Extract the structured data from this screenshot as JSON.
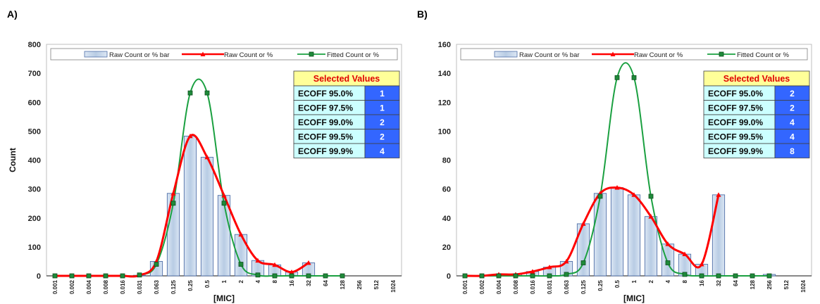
{
  "chart_data": [
    {
      "panel_label": "A)",
      "type": "bar",
      "ylabel": "Count",
      "xlabel": "[MIC]",
      "ylim": [
        0,
        800
      ],
      "yticks": [
        0,
        100,
        200,
        300,
        400,
        500,
        600,
        700,
        800
      ],
      "categories": [
        "0.001",
        "0.002",
        "0.004",
        "0.008",
        "0.016",
        "0.031",
        "0.063",
        "0.125",
        "0.25",
        "0.5",
        "1",
        "2",
        "4",
        "8",
        "16",
        "32",
        "64",
        "128",
        "256",
        "512",
        "1024"
      ],
      "legend": [
        "Raw Count or % bar",
        "Raw Count or %",
        "Fitted Count or %"
      ],
      "series": [
        {
          "name": "Raw Count or % bar",
          "kind": "bar",
          "color": "#b8cce4",
          "values": [
            0,
            0,
            0,
            0,
            0,
            2,
            50,
            285,
            483,
            410,
            278,
            143,
            53,
            38,
            13,
            45,
            null,
            null,
            null,
            null,
            null
          ]
        },
        {
          "name": "Raw Count or %",
          "kind": "line",
          "color": "#ff0000",
          "values": [
            0,
            0,
            0,
            0,
            0,
            2,
            50,
            285,
            483,
            410,
            278,
            143,
            53,
            38,
            13,
            45,
            null,
            null,
            null,
            null,
            null
          ]
        },
        {
          "name": "Fitted Count or %",
          "kind": "line",
          "color": "#1aa040",
          "values": [
            0,
            0,
            0,
            0,
            0,
            3,
            40,
            251,
            632,
            632,
            251,
            40,
            3,
            0,
            0,
            0,
            0,
            0,
            null,
            null,
            null
          ]
        }
      ],
      "selected_values": {
        "title": "Selected Values",
        "rows": [
          {
            "label": "ECOFF 95.0%",
            "value": "1"
          },
          {
            "label": "ECOFF 97.5%",
            "value": "1"
          },
          {
            "label": "ECOFF 99.0%",
            "value": "2"
          },
          {
            "label": "ECOFF 99.5%",
            "value": "2"
          },
          {
            "label": "ECOFF 99.9%",
            "value": "4"
          }
        ]
      },
      "grid": false,
      "legend_position": "top"
    },
    {
      "panel_label": "B)",
      "type": "bar",
      "ylabel": "",
      "xlabel": "[MIC]",
      "ylim": [
        0,
        160
      ],
      "yticks": [
        0,
        20,
        40,
        60,
        80,
        100,
        120,
        140,
        160
      ],
      "categories": [
        "0.001",
        "0.002",
        "0.004",
        "0.008",
        "0.016",
        "0.031",
        "0.063",
        "0.125",
        "0.25",
        "0.5",
        "1",
        "2",
        "4",
        "8",
        "16",
        "32",
        "64",
        "128",
        "256",
        "512",
        "1024"
      ],
      "legend": [
        "Raw Count or % bar",
        "Raw Count or %",
        "Fitted Count or %"
      ],
      "series": [
        {
          "name": "Raw Count or % bar",
          "kind": "bar",
          "color": "#b8cce4",
          "values": [
            0,
            0,
            1,
            1,
            3,
            6,
            10,
            36,
            57,
            61,
            56,
            41,
            22,
            15,
            8,
            56,
            0,
            0,
            1,
            null,
            null
          ]
        },
        {
          "name": "Raw Count or %",
          "kind": "line",
          "color": "#ff0000",
          "values": [
            0,
            0,
            1,
            1,
            3,
            6,
            10,
            36,
            57,
            61,
            56,
            41,
            22,
            15,
            8,
            56,
            null,
            null,
            null,
            null,
            null
          ]
        },
        {
          "name": "Fitted Count or %",
          "kind": "line",
          "color": "#1aa040",
          "values": [
            0,
            0,
            0,
            0,
            0,
            0,
            1,
            9,
            55,
            137,
            137,
            55,
            9,
            1,
            0,
            0,
            0,
            0,
            0,
            null,
            null
          ]
        }
      ],
      "selected_values": {
        "title": "Selected Values",
        "rows": [
          {
            "label": "ECOFF 95.0%",
            "value": "2"
          },
          {
            "label": "ECOFF 97.5%",
            "value": "2"
          },
          {
            "label": "ECOFF 99.0%",
            "value": "4"
          },
          {
            "label": "ECOFF 99.5%",
            "value": "4"
          },
          {
            "label": "ECOFF 99.9%",
            "value": "8"
          }
        ]
      },
      "grid": false,
      "legend_position": "top"
    }
  ]
}
